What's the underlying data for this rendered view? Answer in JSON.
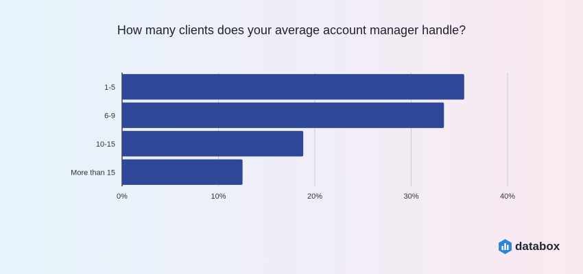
{
  "title": "How many clients does your average account manager handle?",
  "chart_data": {
    "type": "bar",
    "orientation": "horizontal",
    "categories": [
      "1-5",
      "6-9",
      "10-15",
      "More than 15"
    ],
    "values": [
      35.5,
      33.4,
      18.8,
      12.5
    ],
    "unit": "%",
    "xlim": [
      0,
      40
    ],
    "xticks": [
      "0%",
      "10%",
      "20%",
      "30%",
      "40%"
    ],
    "xlabel": "",
    "ylabel": "",
    "grid": true,
    "bar_color": "#2e4797"
  },
  "brand": {
    "logo_text": "databox",
    "logo_icon": "databox-logo-icon",
    "logo_color": "#2f86d6"
  }
}
